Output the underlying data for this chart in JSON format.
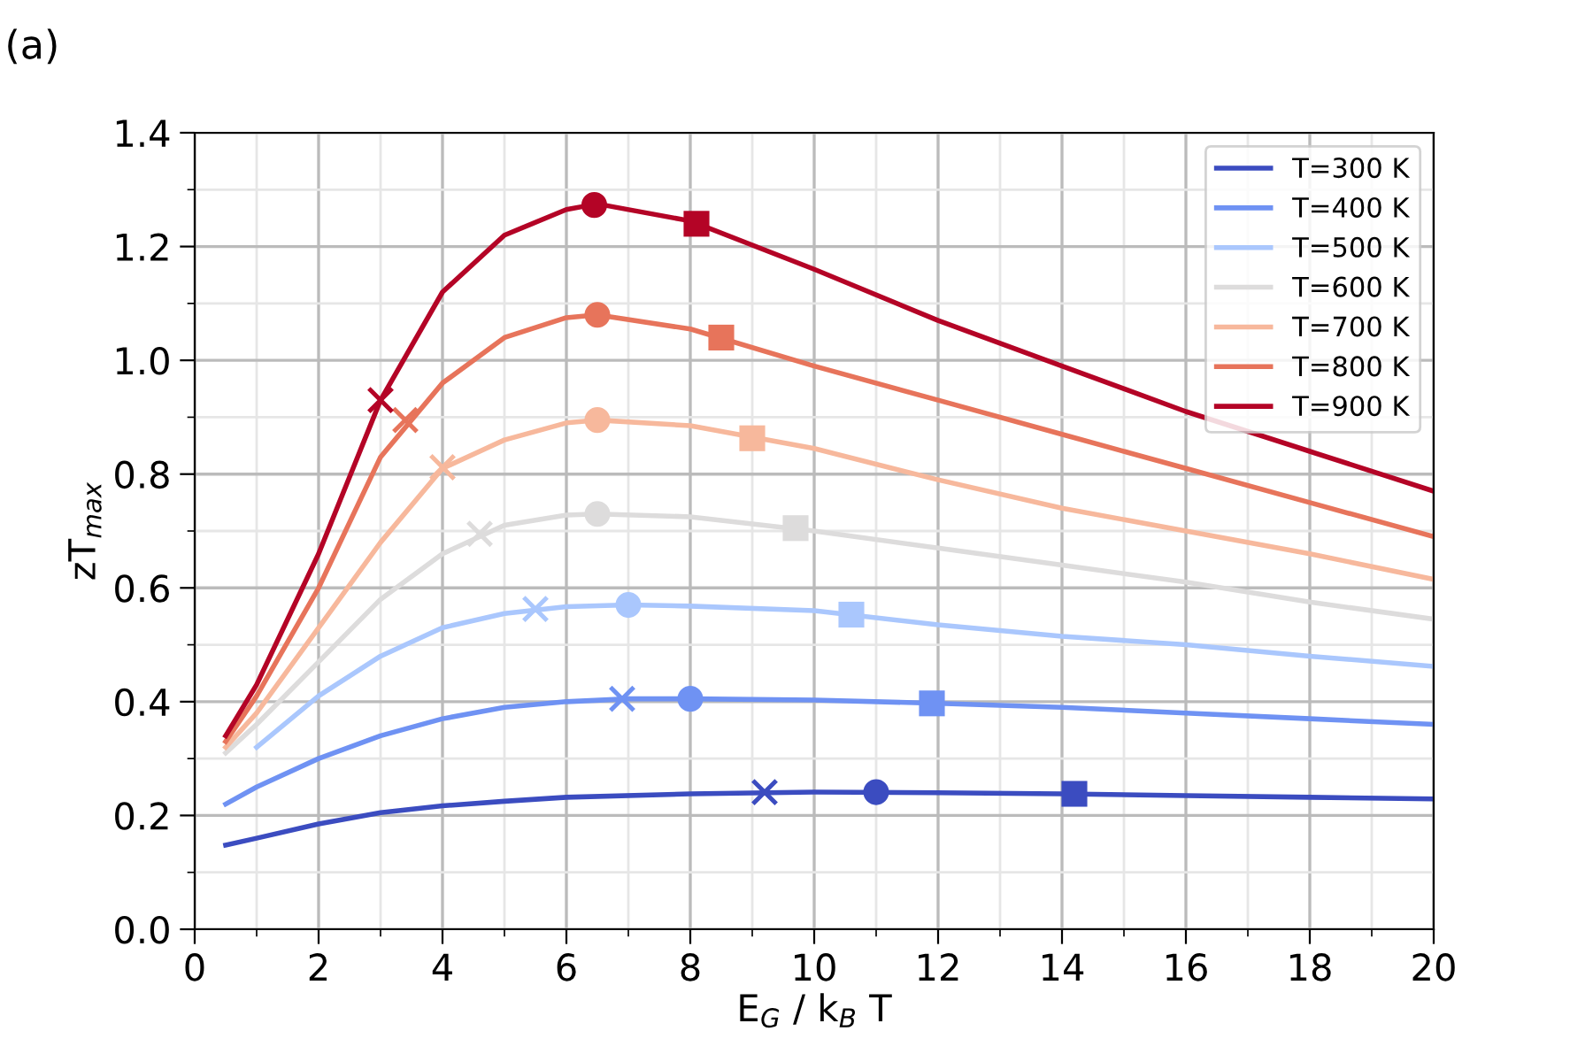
{
  "chart_data": {
    "type": "line",
    "xlabel": "E$_{G}$ / k$_{B}$ T",
    "ylabel": "zT$_{max}$",
    "annotations": [
      "(a)"
    ],
    "xlim": [
      0,
      20
    ],
    "ylim": [
      0,
      1.4
    ],
    "xticks": [
      0,
      {
        "value": 1,
        "label": null
      },
      2,
      {
        "value": 3,
        "label": null
      },
      4,
      {
        "value": 5,
        "label": null
      },
      6,
      {
        "value": 7,
        "label": null
      },
      8,
      {
        "value": 9,
        "label": null
      },
      10,
      {
        "value": 11,
        "label": null
      },
      12,
      {
        "value": 13,
        "label": null
      },
      14,
      {
        "value": 15,
        "label": null
      },
      16,
      {
        "value": 17,
        "label": null
      },
      18,
      {
        "value": 19,
        "label": null
      },
      20
    ],
    "yticks": [
      {
        "value": 0,
        "label": "0.0"
      },
      {
        "value": 0.1,
        "label": null
      },
      {
        "value": 0.2,
        "label": "0.2"
      },
      {
        "value": 0.3,
        "label": null
      },
      {
        "value": 0.4,
        "label": "0.4"
      },
      {
        "value": 0.5,
        "label": null
      },
      {
        "value": 0.6,
        "label": "0.6"
      },
      {
        "value": 0.7,
        "label": null
      },
      {
        "value": 0.8,
        "label": "0.8"
      },
      {
        "value": 0.9,
        "label": null
      },
      {
        "value": 1.0,
        "label": "1.0"
      },
      {
        "value": 1.1,
        "label": null
      },
      {
        "value": 1.2,
        "label": "1.2"
      },
      {
        "value": 1.3,
        "label": null
      },
      {
        "value": 1.4,
        "label": "1.4"
      }
    ],
    "grid": true,
    "legend": "top right",
    "marker": "none",
    "line_style": "solid",
    "series": [
      {
        "name": "T=300 K",
        "color": "#3b4cc0",
        "x": [
          0.5,
          1,
          2,
          3,
          4,
          5,
          6,
          8,
          10,
          12,
          14,
          16,
          18,
          20
        ],
        "values": [
          0.148,
          0.16,
          0.185,
          0.205,
          0.217,
          0.225,
          0.232,
          0.238,
          0.241,
          0.24,
          0.238,
          0.235,
          0.232,
          0.229
        ]
      },
      {
        "name": "T=400 K",
        "color": "#6f92f3",
        "x": [
          0.5,
          1,
          2,
          3,
          4,
          5,
          6,
          7,
          8,
          10,
          12,
          14,
          16,
          18,
          20
        ],
        "values": [
          0.22,
          0.25,
          0.3,
          0.34,
          0.37,
          0.39,
          0.4,
          0.405,
          0.405,
          0.403,
          0.397,
          0.39,
          0.38,
          0.37,
          0.36
        ]
      },
      {
        "name": "T=500 K",
        "color": "#aac7fd",
        "x": [
          1,
          2,
          3,
          4,
          5,
          6,
          7,
          8,
          10,
          12,
          14,
          16,
          18,
          20
        ],
        "values": [
          0.32,
          0.41,
          0.48,
          0.53,
          0.555,
          0.567,
          0.57,
          0.568,
          0.56,
          0.535,
          0.515,
          0.5,
          0.48,
          0.462
        ]
      },
      {
        "name": "T=600 K",
        "color": "#dddcdc",
        "x": [
          0.5,
          1,
          2,
          3,
          4,
          5,
          6,
          6.5,
          8,
          10,
          12,
          14,
          16,
          18,
          20
        ],
        "values": [
          0.31,
          0.36,
          0.47,
          0.58,
          0.66,
          0.71,
          0.728,
          0.73,
          0.725,
          0.7,
          0.67,
          0.64,
          0.61,
          0.575,
          0.545
        ]
      },
      {
        "name": "T=700 K",
        "color": "#f7b89c",
        "x": [
          0.5,
          1,
          2,
          3,
          4,
          5,
          6,
          6.5,
          8,
          10,
          12,
          14,
          16,
          18,
          20
        ],
        "values": [
          0.32,
          0.38,
          0.53,
          0.68,
          0.81,
          0.86,
          0.89,
          0.895,
          0.885,
          0.845,
          0.79,
          0.74,
          0.7,
          0.66,
          0.615
        ]
      },
      {
        "name": "T=800 K",
        "color": "#e7745b",
        "x": [
          0.5,
          1,
          2,
          3,
          4,
          5,
          6,
          6.5,
          8,
          10,
          12,
          14,
          16,
          18,
          20
        ],
        "values": [
          0.33,
          0.41,
          0.6,
          0.83,
          0.96,
          1.04,
          1.075,
          1.08,
          1.055,
          0.99,
          0.93,
          0.87,
          0.81,
          0.75,
          0.69
        ]
      },
      {
        "name": "T=900 K",
        "color": "#b40426",
        "x": [
          0.5,
          1,
          2,
          3,
          4,
          5,
          6,
          6.5,
          8,
          10,
          12,
          14,
          16,
          18,
          20
        ],
        "values": [
          0.34,
          0.43,
          0.66,
          0.93,
          1.12,
          1.22,
          1.265,
          1.275,
          1.245,
          1.16,
          1.07,
          0.99,
          0.91,
          0.84,
          0.77
        ]
      },
      {
        "type": "scatter",
        "marker": "cross",
        "x": [
          9.2,
          6.9,
          5.5,
          4.6,
          4.0,
          3.4,
          3.0
        ],
        "values": [
          0.241,
          0.405,
          0.563,
          0.695,
          0.812,
          0.895,
          0.93
        ],
        "colors": [
          "#3b4cc0",
          "#6f92f3",
          "#aac7fd",
          "#dddcdc",
          "#f7b89c",
          "#e7745b",
          "#b40426"
        ]
      },
      {
        "type": "scatter",
        "marker": "circle",
        "x": [
          11,
          8,
          7,
          6.5,
          6.5,
          6.5,
          6.45
        ],
        "values": [
          0.241,
          0.405,
          0.57,
          0.73,
          0.895,
          1.08,
          1.273
        ],
        "colors": [
          "#3b4cc0",
          "#6f92f3",
          "#aac7fd",
          "#dddcdc",
          "#f7b89c",
          "#e7745b",
          "#b40426"
        ]
      },
      {
        "type": "scatter",
        "marker": "square",
        "x": [
          14.2,
          11.9,
          10.6,
          9.7,
          9.0,
          8.5,
          8.1
        ],
        "values": [
          0.238,
          0.397,
          0.553,
          0.705,
          0.863,
          1.04,
          1.24
        ],
        "colors": [
          "#3b4cc0",
          "#6f92f3",
          "#aac7fd",
          "#dddcdc",
          "#f7b89c",
          "#e7745b",
          "#b40426"
        ]
      }
    ]
  }
}
